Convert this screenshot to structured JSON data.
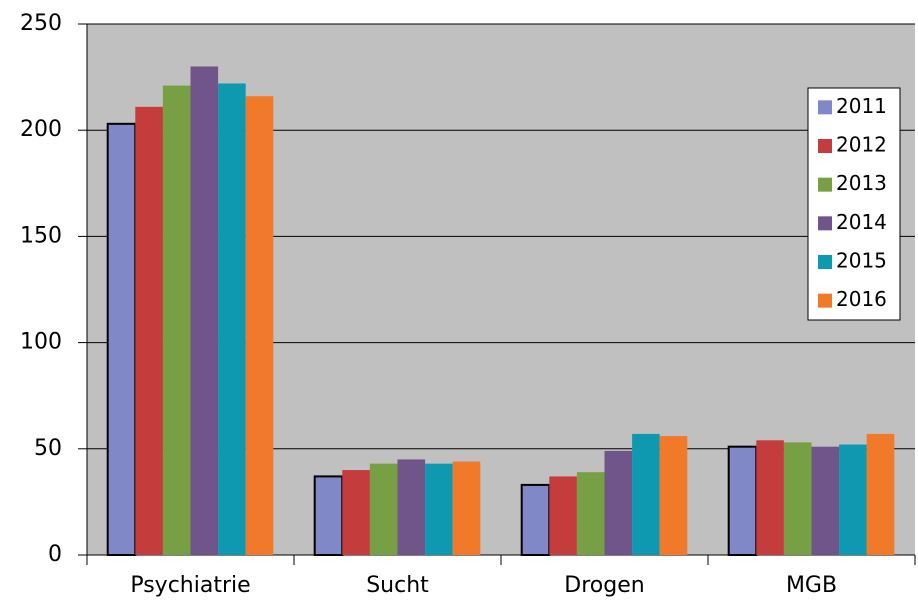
{
  "chart_data": {
    "type": "bar",
    "categories": [
      "Psychiatrie",
      "Sucht",
      "Drogen",
      "MGB"
    ],
    "series": [
      {
        "name": "2011",
        "color": "#8088c8",
        "values": [
          203,
          37,
          33,
          51
        ]
      },
      {
        "name": "2012",
        "color": "#c43c3c",
        "values": [
          211,
          40,
          37,
          54
        ]
      },
      {
        "name": "2013",
        "color": "#77a044",
        "values": [
          221,
          43,
          39,
          53
        ]
      },
      {
        "name": "2014",
        "color": "#70558a",
        "values": [
          230,
          45,
          49,
          51
        ]
      },
      {
        "name": "2015",
        "color": "#0e99b0",
        "values": [
          222,
          43,
          57,
          52
        ]
      },
      {
        "name": "2016",
        "color": "#f07a2a",
        "values": [
          216,
          44,
          56,
          57
        ]
      }
    ],
    "ylim": [
      0,
      250
    ],
    "yticks": [
      0,
      50,
      100,
      150,
      200,
      250
    ],
    "grid": true,
    "legend": "right"
  }
}
